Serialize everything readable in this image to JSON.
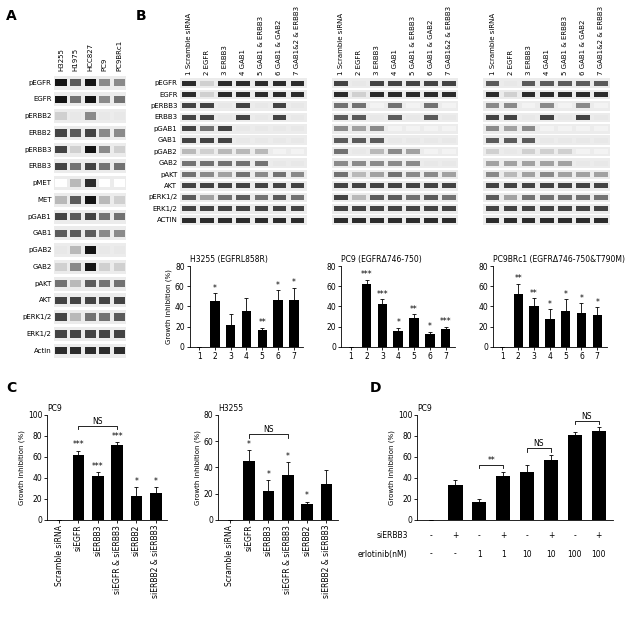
{
  "panel_labels": [
    "A",
    "B",
    "C",
    "D"
  ],
  "panel_A_blot": {
    "lanes": [
      "H3255",
      "H1975",
      "HCC827",
      "PC9",
      "PC9BRc1"
    ],
    "rows": [
      "pEGFR",
      "EGFR",
      "pERBB2",
      "ERBB2",
      "pERBB3",
      "ERBB3",
      "pMET",
      "MET",
      "pGAB1",
      "GAB1",
      "pGAB2",
      "GAB2",
      "pAKT",
      "AKT",
      "pERK1/2",
      "ERK1/2",
      "Actin"
    ],
    "intensity": [
      [
        1.0,
        0.7,
        1.0,
        0.5,
        0.5
      ],
      [
        1.0,
        0.6,
        1.0,
        0.5,
        0.6
      ],
      [
        0.2,
        0.1,
        0.5,
        0.1,
        0.1
      ],
      [
        0.8,
        0.7,
        0.8,
        0.5,
        0.5
      ],
      [
        0.8,
        0.2,
        1.0,
        0.5,
        0.2
      ],
      [
        0.8,
        0.6,
        0.8,
        0.6,
        0.6
      ],
      [
        0.0,
        0.3,
        0.9,
        0.0,
        0.0
      ],
      [
        0.3,
        0.7,
        1.0,
        0.3,
        0.2
      ],
      [
        0.8,
        0.7,
        0.8,
        0.6,
        0.6
      ],
      [
        0.7,
        0.7,
        0.7,
        0.5,
        0.5
      ],
      [
        0.1,
        0.3,
        1.0,
        0.1,
        0.1
      ],
      [
        0.2,
        0.5,
        1.0,
        0.2,
        0.2
      ],
      [
        0.6,
        0.3,
        0.7,
        0.6,
        0.6
      ],
      [
        0.8,
        0.8,
        0.8,
        0.8,
        0.8
      ],
      [
        0.8,
        0.3,
        0.6,
        0.6,
        0.7
      ],
      [
        0.8,
        0.8,
        0.8,
        0.8,
        0.8
      ],
      [
        0.9,
        0.9,
        0.9,
        0.9,
        0.9
      ]
    ]
  },
  "panel_B_blots": {
    "lanes": [
      "1 Scramble siRNA",
      "2 EGFR",
      "3 ERBB3",
      "4 GAB1",
      "5 GAB1 & ERBB3",
      "6 GAB1 & GAB2",
      "7 GAB1&2 & ERBB3"
    ],
    "rows": [
      "pEGFR",
      "EGFR",
      "pERBB3",
      "ERBB3",
      "pGAB1",
      "GAB1",
      "pGAB2",
      "GAB2",
      "pAKT",
      "AKT",
      "pERK1/2",
      "ERK1/2",
      "ACTIN"
    ],
    "intensity": [
      [
        [
          0.9,
          0.2,
          0.9,
          0.9,
          0.9,
          0.9,
          0.9
        ],
        [
          0.9,
          0.2,
          0.9,
          0.9,
          0.9,
          0.9,
          0.9
        ],
        [
          0.8,
          0.8,
          0.1,
          0.8,
          0.1,
          0.8,
          0.1
        ],
        [
          0.8,
          0.8,
          0.1,
          0.8,
          0.1,
          0.8,
          0.1
        ],
        [
          0.8,
          0.6,
          0.8,
          0.1,
          0.1,
          0.1,
          0.1
        ],
        [
          0.8,
          0.8,
          0.8,
          0.1,
          0.1,
          0.1,
          0.1
        ],
        [
          0.3,
          0.2,
          0.3,
          0.3,
          0.3,
          0.05,
          0.05
        ],
        [
          0.6,
          0.6,
          0.6,
          0.6,
          0.6,
          0.1,
          0.1
        ],
        [
          0.6,
          0.5,
          0.4,
          0.6,
          0.5,
          0.6,
          0.5
        ],
        [
          0.8,
          0.8,
          0.8,
          0.8,
          0.8,
          0.8,
          0.8
        ],
        [
          0.7,
          0.4,
          0.6,
          0.7,
          0.6,
          0.7,
          0.6
        ],
        [
          0.8,
          0.8,
          0.8,
          0.8,
          0.8,
          0.8,
          0.8
        ],
        [
          0.9,
          0.9,
          0.9,
          0.9,
          0.9,
          0.9,
          0.9
        ]
      ],
      [
        [
          0.8,
          0.1,
          0.8,
          0.8,
          0.8,
          0.8,
          0.8
        ],
        [
          0.9,
          0.2,
          0.9,
          0.9,
          0.9,
          0.9,
          0.9
        ],
        [
          0.6,
          0.6,
          0.05,
          0.6,
          0.05,
          0.6,
          0.05
        ],
        [
          0.7,
          0.7,
          0.1,
          0.7,
          0.1,
          0.7,
          0.1
        ],
        [
          0.5,
          0.4,
          0.5,
          0.05,
          0.05,
          0.05,
          0.05
        ],
        [
          0.7,
          0.7,
          0.7,
          0.1,
          0.1,
          0.1,
          0.1
        ],
        [
          0.6,
          0.1,
          0.3,
          0.5,
          0.4,
          0.05,
          0.05
        ],
        [
          0.5,
          0.5,
          0.5,
          0.5,
          0.5,
          0.1,
          0.1
        ],
        [
          0.6,
          0.3,
          0.4,
          0.6,
          0.5,
          0.5,
          0.4
        ],
        [
          0.8,
          0.8,
          0.8,
          0.8,
          0.8,
          0.8,
          0.8
        ],
        [
          0.8,
          0.3,
          0.7,
          0.7,
          0.6,
          0.7,
          0.6
        ],
        [
          0.8,
          0.8,
          0.8,
          0.8,
          0.8,
          0.8,
          0.8
        ],
        [
          0.9,
          0.9,
          0.9,
          0.9,
          0.9,
          0.9,
          0.9
        ]
      ],
      [
        [
          0.7,
          0.1,
          0.7,
          0.7,
          0.7,
          0.7,
          0.7
        ],
        [
          0.9,
          0.2,
          0.9,
          0.9,
          0.9,
          0.9,
          0.9
        ],
        [
          0.5,
          0.5,
          0.05,
          0.5,
          0.05,
          0.5,
          0.05
        ],
        [
          0.8,
          0.8,
          0.1,
          0.8,
          0.1,
          0.8,
          0.1
        ],
        [
          0.5,
          0.4,
          0.5,
          0.05,
          0.05,
          0.05,
          0.05
        ],
        [
          0.7,
          0.7,
          0.7,
          0.1,
          0.1,
          0.1,
          0.1
        ],
        [
          0.2,
          0.1,
          0.2,
          0.2,
          0.2,
          0.05,
          0.05
        ],
        [
          0.4,
          0.4,
          0.4,
          0.4,
          0.4,
          0.1,
          0.1
        ],
        [
          0.5,
          0.3,
          0.4,
          0.5,
          0.4,
          0.4,
          0.4
        ],
        [
          0.8,
          0.8,
          0.8,
          0.8,
          0.8,
          0.8,
          0.8
        ],
        [
          0.7,
          0.4,
          0.6,
          0.6,
          0.6,
          0.6,
          0.6
        ],
        [
          0.8,
          0.8,
          0.8,
          0.8,
          0.8,
          0.8,
          0.8
        ],
        [
          0.9,
          0.9,
          0.9,
          0.9,
          0.9,
          0.9,
          0.9
        ]
      ]
    ]
  },
  "chart_data": [
    {
      "type": "bar",
      "panel": "B",
      "title": "H3255 (EGFRL858R)",
      "ylabel": "Growth inhibition (%)",
      "categories": [
        "1",
        "2",
        "3",
        "4",
        "5",
        "6",
        "7"
      ],
      "values": [
        0,
        45,
        22,
        35,
        17,
        46,
        46
      ],
      "errors": [
        0,
        8,
        10,
        13,
        2,
        10,
        12
      ],
      "significance": [
        null,
        "*",
        null,
        null,
        "**",
        "*",
        "*"
      ],
      "color": "#000000",
      "ylim": [
        0,
        80
      ],
      "yticks": [
        0,
        20,
        40,
        60,
        80
      ]
    },
    {
      "type": "bar",
      "panel": "B",
      "title": "PC9 (EGFRΔ746-750)",
      "categories": [
        "1",
        "2",
        "3",
        "4",
        "5",
        "6",
        "7"
      ],
      "values": [
        0,
        62,
        42,
        16,
        28,
        13,
        18
      ],
      "errors": [
        0,
        4,
        5,
        3,
        4,
        2,
        2
      ],
      "significance": [
        null,
        "***",
        "***",
        "*",
        "**",
        "*",
        "***"
      ],
      "color": "#000000",
      "ylim": [
        0,
        80
      ],
      "yticks": [
        0,
        20,
        40,
        60,
        80
      ]
    },
    {
      "type": "bar",
      "panel": "B",
      "title": "PC9BRc1 (EGFRΔ746-750&T790M)",
      "categories": [
        "1",
        "2",
        "3",
        "4",
        "5",
        "6",
        "7"
      ],
      "values": [
        0,
        52,
        40,
        27,
        35,
        33,
        31
      ],
      "errors": [
        0,
        10,
        8,
        10,
        12,
        10,
        8
      ],
      "significance": [
        null,
        "**",
        "**",
        "*",
        "*",
        "*",
        "*"
      ],
      "color": "#000000",
      "ylim": [
        0,
        80
      ],
      "yticks": [
        0,
        20,
        40,
        60,
        80
      ]
    },
    {
      "type": "bar",
      "panel": "C",
      "title": "PC9",
      "ylabel": "Growth inhibition (%)",
      "categories": [
        "Scramble siRNA",
        "siEGFR",
        "siERBB3",
        "siEGFR & siERBB3",
        "siERBB2",
        "siERBB2 & siERBB3"
      ],
      "values": [
        0,
        62,
        42,
        71,
        23,
        26
      ],
      "errors": [
        0,
        4,
        4,
        3,
        8,
        5
      ],
      "significance": [
        null,
        "***",
        "***",
        "***",
        "*",
        "*"
      ],
      "brackets": [
        {
          "between": [
            1,
            3
          ],
          "label": "NS"
        }
      ],
      "color": "#000000",
      "ylim": [
        0,
        100
      ],
      "yticks": [
        0,
        20,
        40,
        60,
        80,
        100
      ]
    },
    {
      "type": "bar",
      "panel": "C",
      "title": "H3255",
      "ylabel": "Growth inhibition (%)",
      "categories": [
        "Scramble siRNA",
        "siEGFR",
        "siERBB3",
        "siEGFR & siERBB3",
        "siERBB2",
        "siERBB2 & siERBB3"
      ],
      "values": [
        0,
        45,
        22,
        34,
        12,
        27
      ],
      "errors": [
        0,
        8,
        8,
        10,
        2,
        11
      ],
      "significance": [
        null,
        "*",
        "*",
        "*",
        "*",
        null
      ],
      "brackets": [
        {
          "between": [
            1,
            3
          ],
          "label": "NS"
        }
      ],
      "color": "#000000",
      "ylim": [
        0,
        80
      ],
      "yticks": [
        0,
        20,
        40,
        60,
        80
      ]
    },
    {
      "type": "bar",
      "panel": "D",
      "title": "PC9",
      "ylabel": "Growth inhibition (%)",
      "categories": [
        null,
        null,
        null,
        null,
        null,
        null,
        null,
        null
      ],
      "x_rows": [
        {
          "label": "siERBB3",
          "values": [
            "-",
            "+",
            "-",
            "+",
            "-",
            "+",
            "-",
            "+"
          ]
        },
        {
          "label": "erlotinib(nM)",
          "values": [
            "-",
            "-",
            "1",
            "1",
            "10",
            "10",
            "100",
            "100"
          ]
        }
      ],
      "values": [
        0,
        33,
        17,
        42,
        46,
        57,
        81,
        85
      ],
      "errors": [
        0,
        5,
        3,
        4,
        6,
        5,
        3,
        3
      ],
      "significance": [
        null,
        null,
        null,
        null,
        null,
        null,
        null,
        null
      ],
      "brackets": [
        {
          "between": [
            2,
            3
          ],
          "label": "**"
        },
        {
          "between": [
            4,
            5
          ],
          "label": "NS"
        },
        {
          "between": [
            6,
            7
          ],
          "label": "NS"
        }
      ],
      "color": "#000000",
      "ylim": [
        0,
        100
      ],
      "yticks": [
        0,
        20,
        40,
        60,
        80,
        100
      ]
    }
  ]
}
